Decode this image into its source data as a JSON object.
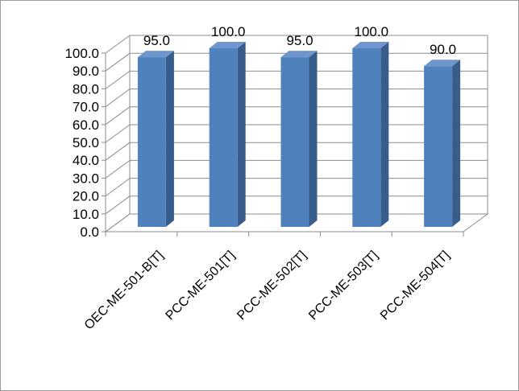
{
  "chart_data": {
    "type": "bar",
    "categories": [
      "OEC-ME-501-B[T]",
      "PCC-ME-501[T]",
      "PCC-ME-502[T]",
      "PCC-ME-503[T]",
      "PCC-ME-504[T]"
    ],
    "values": [
      95.0,
      100.0,
      95.0,
      100.0,
      90.0
    ],
    "data_labels": [
      "95.0",
      "100.0",
      "95.0",
      "100.0",
      "90.0"
    ],
    "y_ticks": [
      "0.0",
      "10.0",
      "20.0",
      "30.0",
      "40.0",
      "50.0",
      "60.0",
      "70.0",
      "80.0",
      "90.0",
      "100.0"
    ],
    "ylim": [
      0,
      100
    ],
    "grid": true,
    "legend": "none",
    "style": "3d-clustered-column",
    "bar_color": "#4f81bd",
    "bar_side_color": "#385d8a",
    "bar_top_color": "#6f96cc"
  }
}
